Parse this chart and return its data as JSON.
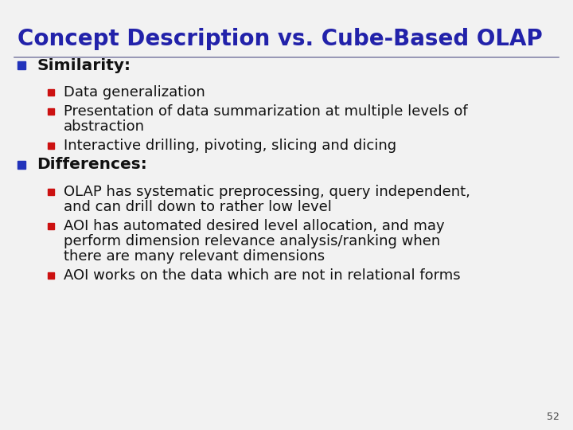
{
  "title": "Concept Description vs. Cube-Based OLAP",
  "title_color": "#2222aa",
  "title_fontsize": 20,
  "slide_bg": "#f2f2f2",
  "separator_color": "#8888aa",
  "page_number": "52",
  "l1_bullet_color": "#2233bb",
  "l2_bullet_color": "#cc1111",
  "l1_fontsize": 14.5,
  "l2_fontsize": 13,
  "content": [
    {
      "level": 1,
      "text": "Similarity:",
      "bold": true
    },
    {
      "level": 2,
      "text": "Data generalization",
      "lines": 1
    },
    {
      "level": 2,
      "text": "Presentation of data summarization at multiple levels of\nabstraction",
      "lines": 2
    },
    {
      "level": 2,
      "text": "Interactive drilling, pivoting, slicing and dicing",
      "lines": 1
    },
    {
      "level": 1,
      "text": "Differences:",
      "bold": true
    },
    {
      "level": 2,
      "text": "OLAP has systematic preprocessing, query independent,\nand can drill down to rather low level",
      "lines": 2
    },
    {
      "level": 2,
      "text": "AOI has automated desired level allocation, and may\nperform dimension relevance analysis/ranking when\nthere are many relevant dimensions",
      "lines": 3
    },
    {
      "level": 2,
      "text": "AOI works on the data which are not in relational forms",
      "lines": 1
    }
  ]
}
